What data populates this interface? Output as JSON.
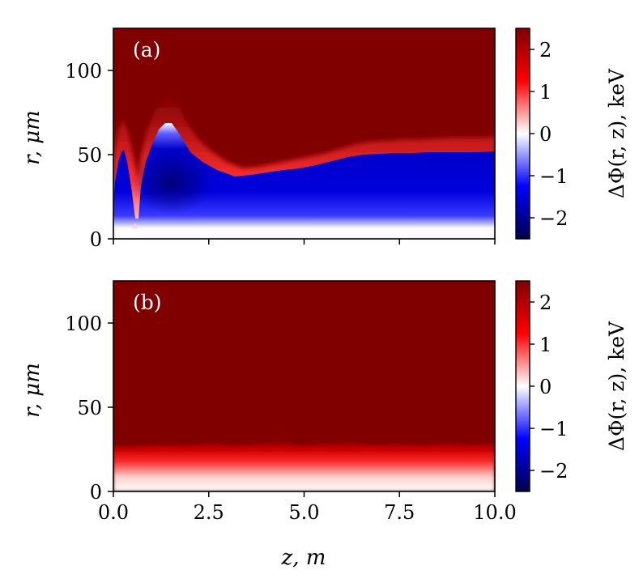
{
  "figure": {
    "xlabel": "z, m",
    "colormap": [
      "#00004c",
      "#0000ff",
      "#ffffff",
      "#ff0000",
      "#800000"
    ]
  },
  "chart_data": [
    {
      "type": "heatmap",
      "panel_label": "(a)",
      "xlabel": "z, m",
      "ylabel": "r, μm",
      "colorbar_label": "ΔΦ(r, z), keV",
      "xlim": [
        0.0,
        10.0
      ],
      "ylim": [
        0,
        125
      ],
      "clim": [
        -2.5,
        2.5
      ],
      "xticks": [
        "0.0",
        "2.5",
        "5.0",
        "7.5",
        "10.0"
      ],
      "xtick_values": [
        0,
        2.5,
        5,
        7.5,
        10
      ],
      "yticks": [
        "0",
        "50",
        "100"
      ],
      "ytick_values": [
        0,
        50,
        100
      ],
      "cbar_ticks": [
        "−2",
        "−1",
        "0",
        "1",
        "2"
      ],
      "cbar_tick_values": [
        -2,
        -1,
        0,
        1,
        2
      ],
      "show_xticklabels": false,
      "zero_contour_r_vs_z": {
        "z": [
          0.0,
          0.1,
          0.2,
          0.3,
          0.4,
          0.5,
          0.6,
          0.7,
          0.9,
          1.1,
          1.3,
          1.5,
          1.7,
          2.0,
          2.3,
          2.6,
          3.0,
          3.3,
          3.6,
          4.0,
          4.5,
          5.0,
          5.5,
          6.0,
          6.5,
          7.0,
          7.5,
          8.0,
          8.5,
          9.0,
          9.5,
          10.0
        ],
        "r": [
          30,
          55,
          62,
          52,
          42,
          30,
          20,
          45,
          55,
          62,
          68,
          70,
          66,
          58,
          50,
          45,
          41,
          40,
          42,
          44,
          46,
          49,
          52,
          53,
          54,
          54,
          55,
          55,
          55,
          55,
          54,
          55
        ]
      },
      "core_min_keV": -2.5,
      "description_values": {
        "region_above_contour_keV": 2.5,
        "on_axis_r0_keV": 0
      }
    },
    {
      "type": "heatmap",
      "panel_label": "(b)",
      "xlabel": "z, m",
      "ylabel": "r, μm",
      "colorbar_label": "ΔΦ(r, z), keV",
      "xlim": [
        0.0,
        10.0
      ],
      "ylim": [
        0,
        125
      ],
      "clim": [
        -2.5,
        2.5
      ],
      "xticks": [
        "0.0",
        "2.5",
        "5.0",
        "7.5",
        "10.0"
      ],
      "xtick_values": [
        0,
        2.5,
        5,
        7.5,
        10
      ],
      "yticks": [
        "0",
        "50",
        "100"
      ],
      "ytick_values": [
        0,
        50,
        100
      ],
      "cbar_ticks": [
        "−2",
        "−1",
        "0",
        "1",
        "2"
      ],
      "cbar_tick_values": [
        -2,
        -1,
        0,
        1,
        2
      ],
      "show_xticklabels": true,
      "saturation_r_vs_z": {
        "z": [
          0,
          1,
          2,
          3,
          4,
          5,
          6,
          7,
          8,
          9,
          10
        ],
        "r": [
          26,
          25,
          27,
          25,
          27,
          26,
          26,
          25,
          26,
          25,
          26
        ]
      },
      "description_values": {
        "region_above_keV": 2.5,
        "on_axis_r0_keV": 0
      }
    }
  ]
}
